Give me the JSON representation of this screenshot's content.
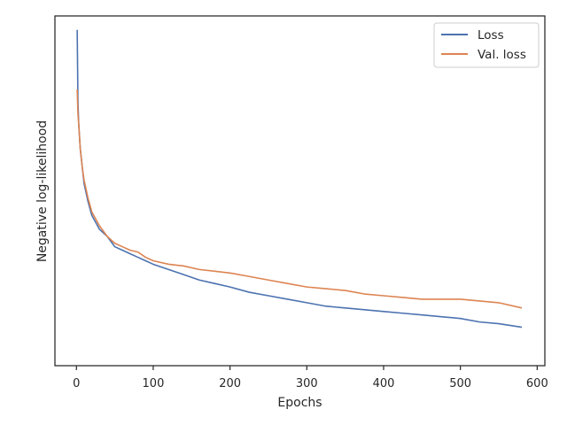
{
  "chart_data": {
    "type": "line",
    "title": "",
    "xlabel": "Epochs",
    "ylabel": "Negative log-likelihood",
    "xlim": [
      -28,
      610
    ],
    "ylim": [
      0,
      1
    ],
    "y_tick_labels_shown": false,
    "xticks": [
      0,
      100,
      200,
      300,
      400,
      500,
      600
    ],
    "xtick_labels": [
      "0",
      "100",
      "200",
      "300",
      "400",
      "500",
      "600"
    ],
    "grid": false,
    "legend_position": "upper right",
    "x": [
      1,
      2,
      3,
      5,
      8,
      10,
      15,
      20,
      25,
      30,
      40,
      50,
      60,
      70,
      80,
      90,
      100,
      120,
      140,
      160,
      180,
      200,
      225,
      250,
      275,
      300,
      325,
      350,
      375,
      400,
      425,
      450,
      475,
      500,
      525,
      550,
      580
    ],
    "series": [
      {
        "name": "Loss",
        "color": "#4c72b0",
        "values": [
          0.96,
          0.75,
          0.69,
          0.62,
          0.56,
          0.52,
          0.47,
          0.43,
          0.41,
          0.39,
          0.37,
          0.34,
          0.33,
          0.32,
          0.31,
          0.3,
          0.29,
          0.275,
          0.26,
          0.245,
          0.235,
          0.225,
          0.21,
          0.2,
          0.19,
          0.18,
          0.17,
          0.165,
          0.16,
          0.155,
          0.15,
          0.145,
          0.14,
          0.135,
          0.125,
          0.12,
          0.11
        ]
      },
      {
        "name": "Val. loss",
        "color": "#dd8452",
        "values": [
          0.79,
          0.72,
          0.69,
          0.62,
          0.56,
          0.53,
          0.48,
          0.44,
          0.42,
          0.4,
          0.37,
          0.35,
          0.34,
          0.33,
          0.325,
          0.31,
          0.3,
          0.29,
          0.285,
          0.275,
          0.27,
          0.265,
          0.255,
          0.245,
          0.235,
          0.225,
          0.22,
          0.215,
          0.205,
          0.2,
          0.195,
          0.19,
          0.19,
          0.19,
          0.185,
          0.18,
          0.165
        ]
      }
    ]
  }
}
